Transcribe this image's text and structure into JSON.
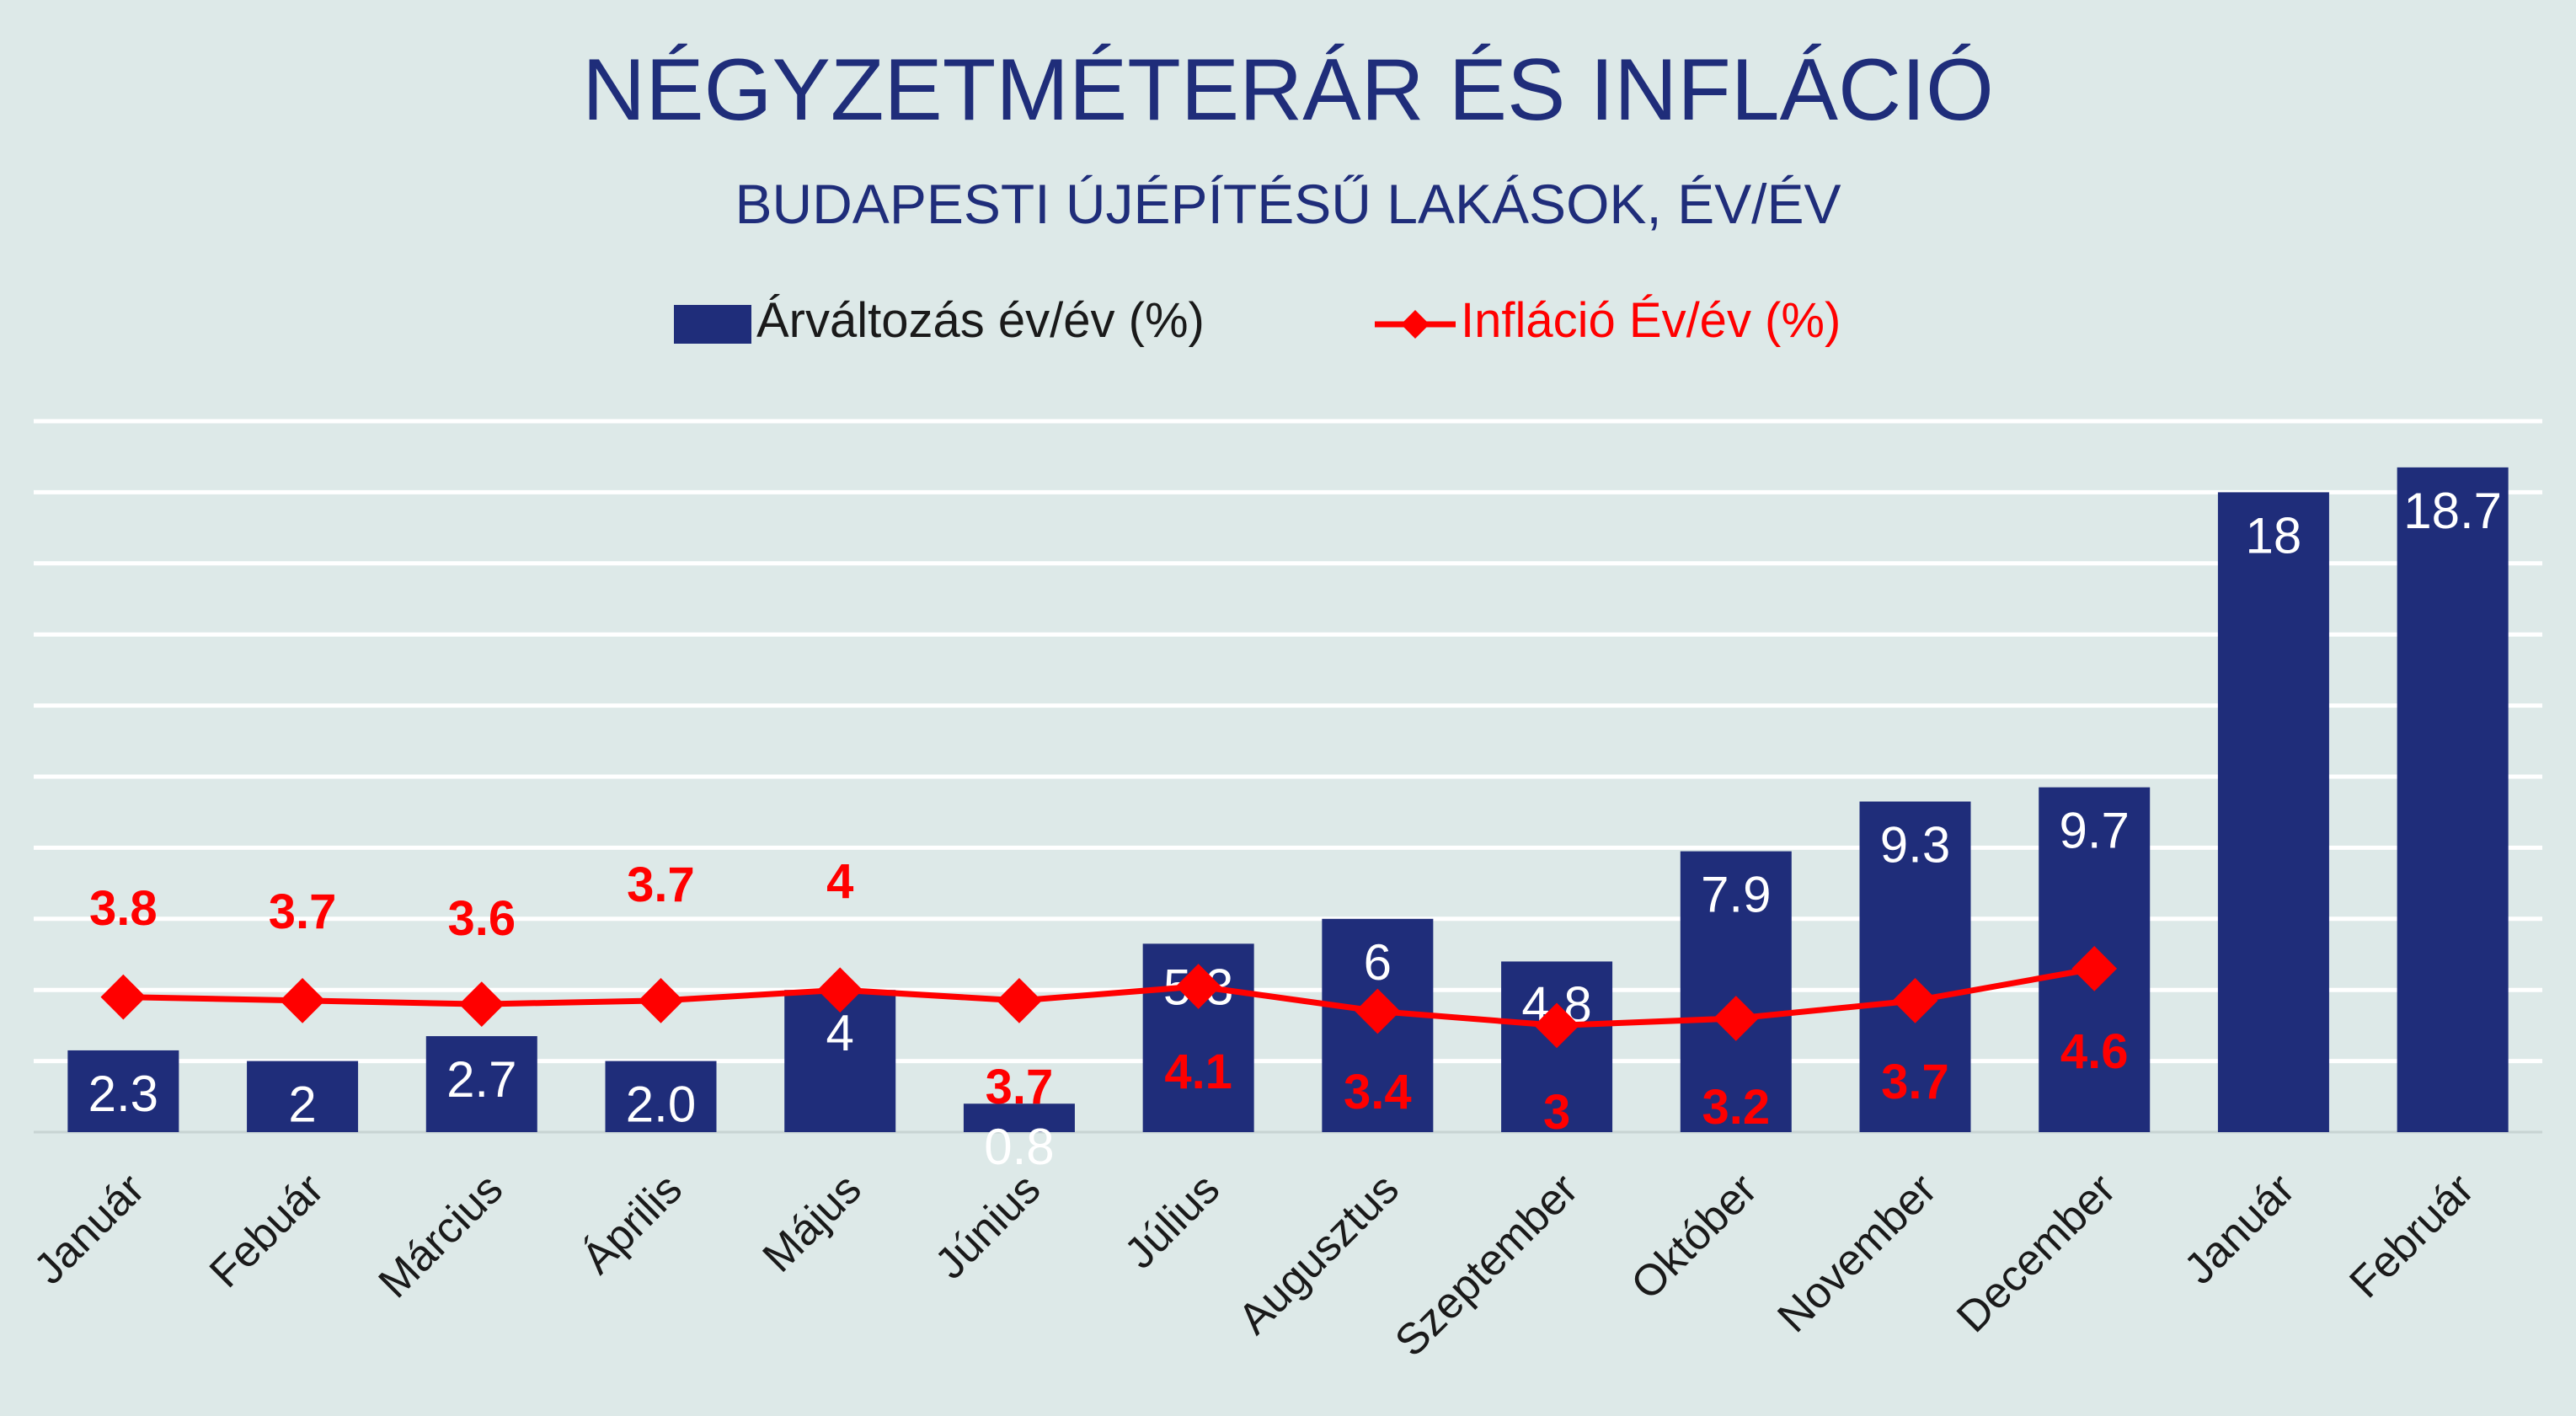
{
  "chart_data": {
    "type": "bar",
    "title": "NÉGYZETMÉTERÁR ÉS INFLÁCIÓ",
    "subtitle": "BUDAPESTI ÚJÉPÍTÉSŰ LAKÁSOK, ÉV/ÉV",
    "xlabel": "",
    "ylabel": "",
    "ylim": [
      0,
      20
    ],
    "grid": true,
    "legend_position": "top",
    "categories": [
      "Január",
      "Febuár",
      "Március",
      "Április",
      "Május",
      "Június",
      "Július",
      "Augusztus",
      "Szeptember",
      "Október",
      "November",
      "December",
      "Január",
      "Február"
    ],
    "series": [
      {
        "name": "Árváltozás év/év (%)",
        "kind": "bar",
        "color": "#1f2d7a",
        "values": [
          2.3,
          2,
          2.7,
          2.0,
          4,
          0.8,
          5.3,
          6,
          4.8,
          7.9,
          9.3,
          9.7,
          18,
          18.7
        ],
        "labels": [
          "2.3",
          "2",
          "2.7",
          "2.0",
          "4",
          "0.8",
          "5.3",
          "6",
          "4.8",
          "7.9",
          "9.3",
          "9.7",
          "18",
          "18.7"
        ]
      },
      {
        "name": "Infláció Év/év (%)",
        "kind": "line",
        "color": "#ff0000",
        "values": [
          3.8,
          3.7,
          3.6,
          3.7,
          4,
          3.7,
          4.1,
          3.4,
          3,
          3.2,
          3.7,
          4.6,
          null,
          null
        ],
        "labels": [
          "3.8",
          "3.7",
          "3.6",
          "3.7",
          "4",
          "3.7",
          "4.1",
          "3.4",
          "3",
          "3.2",
          "3.7",
          "4.6",
          null,
          null
        ]
      }
    ]
  },
  "colors": {
    "background": "#dde9e8",
    "title": "#1f2d7a",
    "gridline": "#ffffff",
    "bar": "#1f2d7a",
    "line": "#ff0000"
  }
}
